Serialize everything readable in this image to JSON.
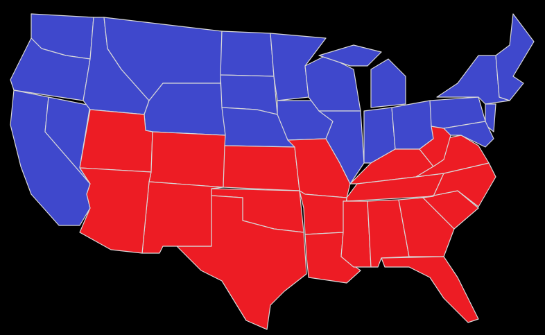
{
  "map": {
    "background": "#000000",
    "colors": {
      "blue": "#3f48cc",
      "red": "#ed1c24",
      "border": "#d8d8d8"
    },
    "state_colors": {
      "WA": "blue",
      "OR": "blue",
      "CA": "blue",
      "NV": "blue",
      "ID": "blue",
      "MT": "blue",
      "WY": "blue",
      "ND": "blue",
      "SD": "blue",
      "NE": "blue",
      "MN": "blue",
      "IA": "blue",
      "WI": "blue",
      "IL": "blue",
      "MI-upper": "blue",
      "MI-lower": "blue",
      "IN": "blue",
      "OH": "blue",
      "PA": "blue",
      "NY": "blue",
      "NEW-ENGLAND": "blue",
      "NJ": "blue",
      "MD-DE": "blue",
      "UT": "red",
      "CO": "red",
      "AZ": "red",
      "NM": "red",
      "KS": "red",
      "OK": "red",
      "TX": "red",
      "MO": "red",
      "AR": "red",
      "LA": "red",
      "KY": "red",
      "TN": "red",
      "MS": "red",
      "AL": "red",
      "GA": "red",
      "FL": "red",
      "SC": "red",
      "NC": "red",
      "VA": "red",
      "WV": "red"
    }
  }
}
